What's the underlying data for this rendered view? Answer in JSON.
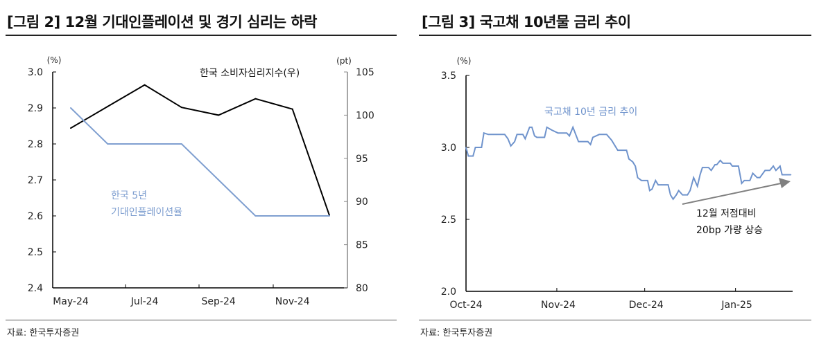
{
  "source_label": "자료: 한국투자증권",
  "chart_data": [
    {
      "type": "line",
      "title": "[그림 2] 12월 기대인플레이션 및 경기 심리는 하락",
      "categories": [
        "May-24",
        "Jun-24",
        "Jul-24",
        "Aug-24",
        "Sep-24",
        "Oct-24",
        "Nov-24",
        "Dec-24"
      ],
      "xtick_labels": [
        "May-24",
        "Jul-24",
        "Sep-24",
        "Nov-24"
      ],
      "ylabel_left": "(%)",
      "ylabel_right": "(pt)",
      "ylim_left": [
        2.4,
        3.0
      ],
      "ylim_right": [
        80,
        105
      ],
      "yticks_left": [
        "3.0",
        "2.9",
        "2.8",
        "2.7",
        "2.6",
        "2.5",
        "2.4"
      ],
      "yticks_right": [
        "105",
        "100",
        "95",
        "90",
        "85",
        "80"
      ],
      "series": [
        {
          "name": "한국 소비자심리지수(우)",
          "axis": "right",
          "color": "#000000",
          "values": [
            98.5,
            101.0,
            103.5,
            100.9,
            100.0,
            101.9,
            100.7,
            88.4
          ]
        },
        {
          "name": "한국 5년 기대인플레이션율",
          "name_lines": [
            "한국 5년",
            "기대인플레이션율"
          ],
          "axis": "left",
          "color": "#7f9fd0",
          "values": [
            2.9,
            2.8,
            2.8,
            2.8,
            2.7,
            2.6,
            2.6,
            2.6
          ]
        }
      ]
    },
    {
      "type": "line",
      "title": "[그림 3] 국고채 10년물 금리 추이",
      "x_unit": "days since Oct-24 start",
      "xlim": [
        0,
        111.5
      ],
      "xticks": [
        {
          "day": 0,
          "label": "Oct-24"
        },
        {
          "day": 31,
          "label": "Nov-24"
        },
        {
          "day": 61,
          "label": "Dec-24"
        },
        {
          "day": 92,
          "label": "Jan-25"
        }
      ],
      "ylabel": "(%)",
      "ylim": [
        2.0,
        3.5
      ],
      "yticks": [
        "3.5",
        "3.0",
        "2.5",
        "2.0"
      ],
      "series": [
        {
          "name": "국고채 10년 금리 추이",
          "color": "#6f93cc",
          "x": [
            0,
            0.8,
            2.4,
            3.2,
            5.3,
            6.1,
            7.6,
            9.3,
            10.2,
            13.2,
            14.3,
            15.3,
            16.6,
            17.4,
            19.4,
            20.2,
            21.7,
            22.5,
            23.4,
            24.2,
            26.8,
            27.6,
            29.3,
            31.4,
            34.4,
            35.3,
            36.5,
            38.4,
            41.6,
            42.5,
            43.3,
            45.5,
            48.0,
            49.7,
            51.8,
            54.8,
            55.6,
            56.9,
            57.8,
            58.6,
            59.9,
            62.0,
            62.7,
            63.5,
            64.7,
            65.6,
            66.7,
            69.0,
            69.8,
            70.7,
            71.8,
            72.6,
            73.9,
            75.6,
            76.5,
            77.7,
            79.0,
            79.9,
            80.7,
            82.8,
            83.7,
            85.0,
            85.6,
            86.8,
            87.7,
            90.2,
            90.9,
            93.0,
            94.1,
            95.0,
            96.9,
            97.9,
            99.4,
            100.3,
            102.1,
            103.7,
            104.9,
            105.8,
            107.2,
            107.9,
            110.9
          ],
          "values": [
            3.0,
            2.94,
            2.94,
            3.0,
            3.0,
            3.1,
            3.09,
            3.09,
            3.09,
            3.09,
            3.06,
            3.01,
            3.04,
            3.09,
            3.09,
            3.06,
            3.14,
            3.14,
            3.08,
            3.07,
            3.07,
            3.14,
            3.12,
            3.1,
            3.1,
            3.08,
            3.14,
            3.04,
            3.04,
            3.02,
            3.07,
            3.09,
            3.09,
            3.05,
            2.98,
            2.98,
            2.92,
            2.9,
            2.87,
            2.79,
            2.77,
            2.77,
            2.7,
            2.71,
            2.77,
            2.74,
            2.74,
            2.74,
            2.67,
            2.64,
            2.67,
            2.7,
            2.67,
            2.67,
            2.7,
            2.79,
            2.73,
            2.81,
            2.86,
            2.86,
            2.84,
            2.88,
            2.88,
            2.91,
            2.89,
            2.89,
            2.87,
            2.87,
            2.75,
            2.77,
            2.77,
            2.82,
            2.79,
            2.79,
            2.84,
            2.84,
            2.87,
            2.84,
            2.87,
            2.81,
            2.81
          ]
        }
      ],
      "annotation": {
        "lines": [
          "12월 저점대비",
          "20bp 가량 상승"
        ],
        "arrow_color": "#808080"
      }
    }
  ]
}
